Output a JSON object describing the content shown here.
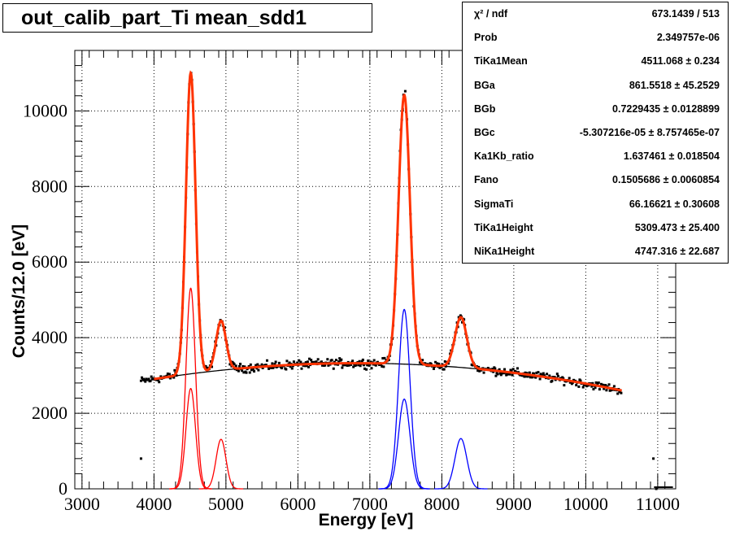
{
  "chart_data": {
    "type": "line",
    "title": "out_calib_part_Ti mean_sdd1",
    "xlabel": "Energy [eV]",
    "ylabel": "Counts/12.0 [eV]",
    "xlim": [
      2900,
      11250
    ],
    "ylim": [
      0,
      11600
    ],
    "x_ticks": [
      3000,
      4000,
      5000,
      6000,
      7000,
      8000,
      9000,
      10000,
      11000
    ],
    "x_tick_labels": [
      "3000",
      "4000",
      "5000",
      "6000",
      "7000",
      "8000",
      "9000",
      "10000",
      "11000"
    ],
    "y_ticks": [
      0,
      2000,
      4000,
      6000,
      8000,
      10000
    ],
    "y_tick_labels": [
      "0",
      "2000",
      "4000",
      "6000",
      "8000",
      "10000"
    ],
    "grid": true,
    "fit_range": [
      4000,
      10500
    ],
    "stats": [
      {
        "name": "χ² / ndf",
        "value": "673.1439 / 513"
      },
      {
        "name": "Prob",
        "value": "2.349757e-06"
      },
      {
        "name": "TiKa1Mean",
        "value": "4511.068 ± 0.234"
      },
      {
        "name": "BGa",
        "value": "861.5518 ± 45.2529"
      },
      {
        "name": "BGb",
        "value": "0.7229435 ± 0.0128899"
      },
      {
        "name": "BGc",
        "value": "-5.307216e-05 ± 8.757465e-07"
      },
      {
        "name": "Ka1Kb_ratio",
        "value": "1.637461 ± 0.018504"
      },
      {
        "name": "Fano",
        "value": "0.1505686 ± 0.0060854"
      },
      {
        "name": "SigmaTi",
        "value": "66.16621 ± 0.30608"
      },
      {
        "name": "TiKa1Height",
        "value": "5309.473 ± 25.400"
      },
      {
        "name": "NiKa1Height",
        "value": "4747.316 ± 22.687"
      }
    ],
    "background": {
      "a": 861.5518,
      "b": 0.7229435,
      "c": -5.307216e-05
    },
    "series": [
      {
        "color": "#ff0000",
        "peaks": [
          {
            "center": 4511,
            "sigma": 66.17,
            "height": 5309
          },
          {
            "center": 4511,
            "sigma": 66.17,
            "height": 2655
          },
          {
            "center": 4932,
            "sigma": 68.5,
            "height": 1310
          }
        ]
      },
      {
        "color": "#0000ff",
        "peaks": [
          {
            "center": 7478,
            "sigma": 79.2,
            "height": 4747
          },
          {
            "center": 7478,
            "sigma": 79.2,
            "height": 2374
          },
          {
            "center": 8265,
            "sigma": 82.4,
            "height": 1330
          }
        ]
      }
    ],
    "outliers": [
      {
        "x": 3820,
        "y": 800
      },
      {
        "x": 10940,
        "y": 800
      },
      {
        "x": 10980,
        "y": 0
      }
    ]
  }
}
